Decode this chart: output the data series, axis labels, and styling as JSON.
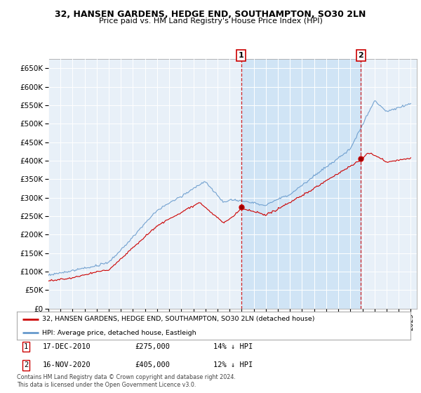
{
  "title": "32, HANSEN GARDENS, HEDGE END, SOUTHAMPTON, SO30 2LN",
  "subtitle": "Price paid vs. HM Land Registry's House Price Index (HPI)",
  "bg_color": "#e8f0f8",
  "shade_color": "#d0e4f5",
  "red_color": "#cc0000",
  "blue_color": "#6699cc",
  "dashed_red": "#cc0000",
  "ylim_min": 0,
  "ylim_max": 675000,
  "yticks": [
    0,
    50000,
    100000,
    150000,
    200000,
    250000,
    300000,
    350000,
    400000,
    450000,
    500000,
    550000,
    600000,
    650000
  ],
  "sale1_date_x": 2010.96,
  "sale1_price": 275000,
  "sale2_date_x": 2020.88,
  "sale2_price": 405000,
  "legend_house": "32, HANSEN GARDENS, HEDGE END, SOUTHAMPTON, SO30 2LN (detached house)",
  "legend_hpi": "HPI: Average price, detached house, Eastleigh",
  "footer": "Contains HM Land Registry data © Crown copyright and database right 2024.\nThis data is licensed under the Open Government Licence v3.0.",
  "xmin": 1995,
  "xmax": 2025.5
}
